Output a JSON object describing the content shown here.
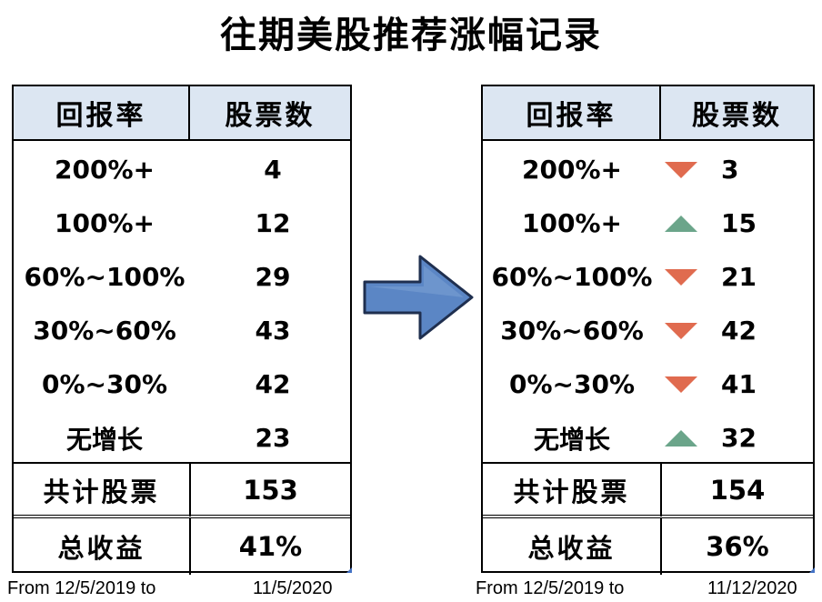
{
  "title": "往期美股推荐涨幅记录",
  "headers": {
    "return_rate": "回报率",
    "stock_count": "股票数"
  },
  "left": {
    "rows": [
      {
        "range": "200%+",
        "count": "4"
      },
      {
        "range": "100%+",
        "count": "12"
      },
      {
        "range": "60%~100%",
        "count": "29"
      },
      {
        "range": "30%~60%",
        "count": "43"
      },
      {
        "range": "0%~30%",
        "count": "42"
      },
      {
        "range": "无增长",
        "count": "23"
      }
    ],
    "total_label": "共计股票",
    "total_value": "153",
    "return_label": "总收益",
    "return_value": "41%",
    "footer_from": "From 12/5/2019 to",
    "footer_to": "11/5/2020"
  },
  "right": {
    "rows": [
      {
        "range": "200%+",
        "count": "3",
        "trend": "down"
      },
      {
        "range": "100%+",
        "count": "15",
        "trend": "up"
      },
      {
        "range": "60%~100%",
        "count": "21",
        "trend": "down"
      },
      {
        "range": "30%~60%",
        "count": "42",
        "trend": "down"
      },
      {
        "range": "0%~30%",
        "count": "41",
        "trend": "down"
      },
      {
        "range": "无增长",
        "count": "32",
        "trend": "up"
      }
    ],
    "total_label": "共计股票",
    "total_value": "154",
    "return_label": "总收益",
    "return_value": "36%",
    "footer_from": "From 12/5/2019 to",
    "footer_to": "11/12/2020"
  },
  "colors": {
    "header_bg": "#DCE6F2",
    "down": "#E06B4F",
    "up": "#6BA58A",
    "arrow": "#5B86C5"
  },
  "icons": {
    "arrow": "right-arrow-icon",
    "down": "triangle-down-icon",
    "up": "triangle-up-icon"
  }
}
